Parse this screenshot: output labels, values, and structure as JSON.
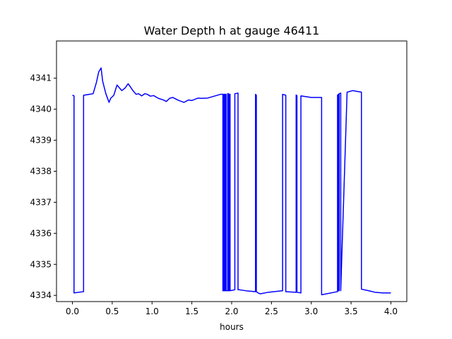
{
  "chart_data": {
    "type": "line",
    "title": "Water Depth h at gauge 46411",
    "xlabel": "hours",
    "ylabel": "",
    "xlim": [
      -0.2,
      4.2
    ],
    "ylim": [
      4333.8,
      4342.2
    ],
    "xticks": [
      0.0,
      0.5,
      1.0,
      1.5,
      2.0,
      2.5,
      3.0,
      3.5,
      4.0
    ],
    "xtick_labels": [
      "0.0",
      "0.5",
      "1.0",
      "1.5",
      "2.0",
      "2.5",
      "3.0",
      "3.5",
      "4.0"
    ],
    "yticks": [
      4334,
      4335,
      4336,
      4337,
      4338,
      4339,
      4340,
      4341
    ],
    "ytick_labels": [
      "4334",
      "4335",
      "4336",
      "4337",
      "4338",
      "4339",
      "4340",
      "4341"
    ],
    "grid": false,
    "series": [
      {
        "color": "#0000ff",
        "x": [
          0.0,
          0.02,
          0.02,
          0.14,
          0.14,
          0.26,
          0.3,
          0.33,
          0.36,
          0.38,
          0.42,
          0.46,
          0.48,
          0.52,
          0.56,
          0.58,
          0.62,
          0.66,
          0.7,
          0.72,
          0.76,
          0.8,
          0.83,
          0.87,
          0.91,
          0.94,
          0.98,
          1.02,
          1.08,
          1.14,
          1.18,
          1.22,
          1.26,
          1.32,
          1.4,
          1.46,
          1.5,
          1.54,
          1.58,
          1.62,
          1.7,
          1.78,
          1.86,
          1.89,
          1.89,
          1.9,
          1.9,
          1.91,
          1.91,
          1.92,
          1.92,
          1.93,
          1.93,
          1.95,
          1.95,
          1.96,
          1.96,
          1.97,
          1.97,
          1.98,
          1.98,
          2.04,
          2.04,
          2.08,
          2.08,
          2.1,
          2.1,
          2.2,
          2.3,
          2.3,
          2.31,
          2.31,
          2.33,
          2.36,
          2.46,
          2.64,
          2.64,
          2.68,
          2.68,
          2.81,
          2.81,
          2.82,
          2.82,
          2.87,
          2.87,
          3.0,
          3.13,
          3.13,
          3.33,
          3.33,
          3.34,
          3.34,
          3.35,
          3.35,
          3.37,
          3.37,
          3.45,
          3.52,
          3.63,
          3.63,
          3.72,
          3.8,
          3.9,
          4.0
        ],
        "y": [
          4340.45,
          4340.43,
          4334.08,
          4334.12,
          4340.45,
          4340.5,
          4340.85,
          4341.2,
          4341.33,
          4340.9,
          4340.5,
          4340.22,
          4340.35,
          4340.45,
          4340.78,
          4340.72,
          4340.6,
          4340.68,
          4340.82,
          4340.75,
          4340.6,
          4340.48,
          4340.5,
          4340.43,
          4340.5,
          4340.48,
          4340.42,
          4340.44,
          4340.35,
          4340.3,
          4340.25,
          4340.35,
          4340.38,
          4340.3,
          4340.22,
          4340.3,
          4340.28,
          4340.32,
          4340.36,
          4340.35,
          4340.36,
          4340.42,
          4340.48,
          4340.48,
          4334.15,
          4334.15,
          4340.48,
          4340.48,
          4334.15,
          4334.15,
          4340.48,
          4340.48,
          4334.15,
          4334.15,
          4340.5,
          4340.5,
          4334.15,
          4334.15,
          4340.48,
          4340.48,
          4334.15,
          4334.18,
          4340.5,
          4340.52,
          4334.18,
          4334.18,
          4334.18,
          4334.14,
          4334.12,
          4340.48,
          4340.45,
          4334.12,
          4334.08,
          4334.05,
          4334.1,
          4334.15,
          4340.48,
          4340.45,
          4334.12,
          4334.1,
          4340.46,
          4340.44,
          4334.1,
          4334.08,
          4340.43,
          4340.38,
          4340.38,
          4334.02,
          4334.12,
          4340.45,
          4340.48,
          4334.15,
          4334.15,
          4340.5,
          4340.52,
          4334.15,
          4340.55,
          4340.6,
          4340.55,
          4334.2,
          4334.15,
          4334.1,
          4334.08,
          4334.08
        ]
      }
    ]
  }
}
